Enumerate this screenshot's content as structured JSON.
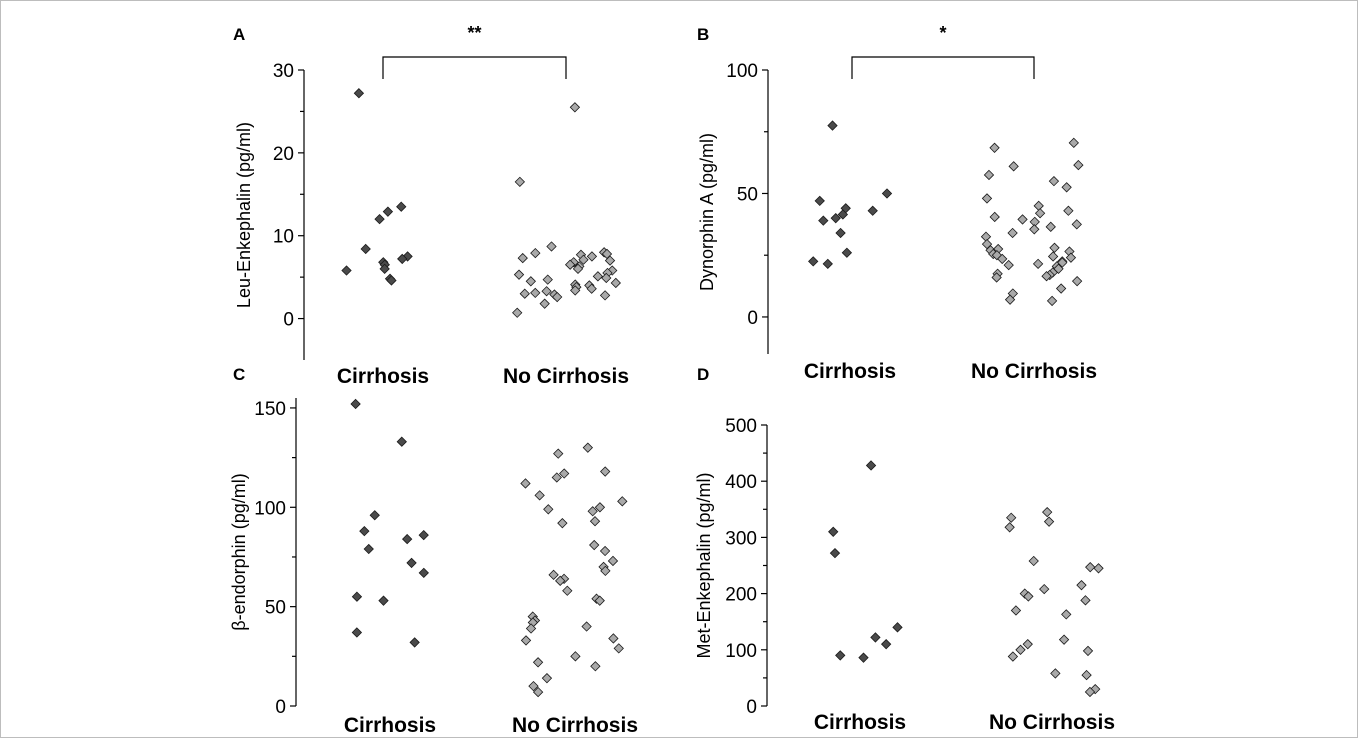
{
  "chart_data": [
    {
      "type": "scatter",
      "panel": "A",
      "ylabel": "Leu-Enkephalin (pg/ml)",
      "categories": [
        "Cirrhosis",
        "No Cirrhosis"
      ],
      "yticks": [
        0,
        10,
        20,
        30
      ],
      "ylim": [
        -5,
        30
      ],
      "significance": "**",
      "series": [
        {
          "name": "Cirrhosis",
          "color": "#4a4a4a",
          "values": [
            27.2,
            13.5,
            12.9,
            12.0,
            8.4,
            7.5,
            7.2,
            6.8,
            6.5,
            6.0,
            5.8,
            4.8,
            4.6
          ]
        },
        {
          "name": "No Cirrhosis",
          "color": "#a9a9a9",
          "values": [
            25.5,
            16.5,
            8.7,
            8.0,
            7.9,
            7.8,
            7.7,
            7.5,
            7.3,
            7.1,
            7.0,
            6.8,
            6.5,
            6.3,
            6.0,
            5.8,
            5.5,
            5.3,
            5.1,
            4.9,
            4.7,
            4.5,
            4.3,
            4.1,
            4.0,
            3.8,
            3.6,
            3.4,
            3.3,
            3.1,
            3.0,
            2.9,
            2.8,
            2.6,
            1.8,
            0.7
          ]
        }
      ]
    },
    {
      "type": "scatter",
      "panel": "B",
      "ylabel": "Dynorphin A (pg/ml)",
      "categories": [
        "Cirrhosis",
        "No Cirrhosis"
      ],
      "yticks": [
        0,
        50,
        100
      ],
      "ylim": [
        -15,
        100
      ],
      "significance": "*",
      "series": [
        {
          "name": "Cirrhosis",
          "color": "#4a4a4a",
          "values": [
            77.5,
            50.0,
            47.0,
            44.0,
            43.0,
            41.5,
            40.0,
            39.0,
            34.0,
            26.0,
            22.5,
            21.5
          ]
        },
        {
          "name": "No Cirrhosis",
          "color": "#a9a9a9",
          "values": [
            70.5,
            68.5,
            61.5,
            61.0,
            57.5,
            55.0,
            52.5,
            48.0,
            45.0,
            43.0,
            42.0,
            40.5,
            39.5,
            38.5,
            37.5,
            36.5,
            35.5,
            34.0,
            32.5,
            29.5,
            28.0,
            27.5,
            27.0,
            26.5,
            25.5,
            25.0,
            24.5,
            24.0,
            23.5,
            22.5,
            22.0,
            21.5,
            21.0,
            20.5,
            19.5,
            18.0,
            17.5,
            17.0,
            16.5,
            16.0,
            14.5,
            11.5,
            9.5,
            7.0,
            6.5
          ]
        }
      ]
    },
    {
      "type": "scatter",
      "panel": "C",
      "ylabel": "β-endorphin (pg/ml)",
      "categories": [
        "Cirrhosis",
        "No Cirrhosis"
      ],
      "yticks": [
        0,
        50,
        100,
        150
      ],
      "ylim": [
        0,
        155
      ],
      "series": [
        {
          "name": "Cirrhosis",
          "color": "#4a4a4a",
          "values": [
            152,
            133,
            96,
            88,
            86,
            84,
            79,
            72,
            67,
            55,
            53,
            37,
            32
          ]
        },
        {
          "name": "No Cirrhosis",
          "color": "#a9a9a9",
          "values": [
            130,
            127,
            118,
            117,
            115,
            112,
            106,
            103,
            100,
            99,
            98,
            93,
            92,
            81,
            78,
            73,
            70,
            68,
            66,
            64,
            63,
            58,
            54,
            53,
            45,
            43,
            42,
            40,
            39,
            34,
            33,
            29,
            25,
            22,
            20,
            14,
            10,
            7
          ]
        }
      ]
    },
    {
      "type": "scatter",
      "panel": "D",
      "ylabel": "Met-Enkephalin (pg/ml)",
      "categories": [
        "Cirrhosis",
        "No Cirrhosis"
      ],
      "yticks": [
        0,
        100,
        200,
        300,
        400,
        500
      ],
      "ylim": [
        0,
        500
      ],
      "series": [
        {
          "name": "Cirrhosis",
          "color": "#4a4a4a",
          "values": [
            428,
            310,
            272,
            140,
            122,
            110,
            90,
            86
          ]
        },
        {
          "name": "No Cirrhosis",
          "color": "#a9a9a9",
          "values": [
            345,
            335,
            328,
            318,
            258,
            247,
            245,
            215,
            208,
            200,
            195,
            188,
            170,
            163,
            118,
            110,
            100,
            98,
            88,
            58,
            55,
            30,
            25
          ]
        }
      ]
    }
  ]
}
